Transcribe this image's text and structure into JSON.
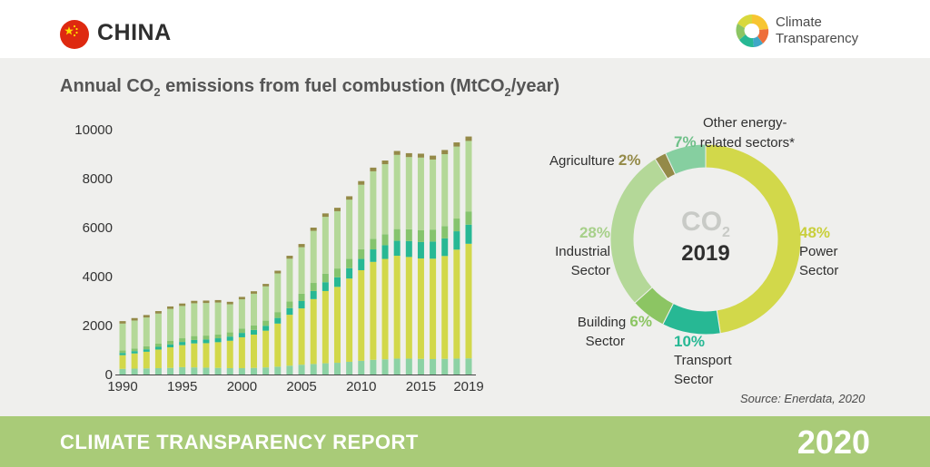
{
  "header": {
    "country": "CHINA",
    "logo_line1": "Climate",
    "logo_line2": "Transparency"
  },
  "footer": {
    "report": "CLIMATE TRANSPARENCY REPORT",
    "year": "2020"
  },
  "source": "Source: Enerdata, 2020",
  "chart_data": [
    {
      "type": "bar",
      "stacked": true,
      "title_parts": [
        "Annual CO",
        "2",
        " emissions from fuel combustion (MtCO",
        "2",
        "/year)"
      ],
      "title": "Annual CO2 emissions from fuel combustion (MtCO2/year)",
      "ylim": [
        0,
        10000
      ],
      "yticks": [
        0,
        2000,
        4000,
        6000,
        8000,
        10000
      ],
      "xticks": [
        1990,
        1995,
        2000,
        2005,
        2010,
        2015,
        2019
      ],
      "categories": [
        1990,
        1991,
        1992,
        1993,
        1994,
        1995,
        1996,
        1997,
        1998,
        1999,
        2000,
        2001,
        2002,
        2003,
        2004,
        2005,
        2006,
        2007,
        2008,
        2009,
        2010,
        2011,
        2012,
        2013,
        2014,
        2015,
        2016,
        2017,
        2018,
        2019
      ],
      "series": [
        {
          "key": "building",
          "color": "#8cd2a4",
          "values": [
            230,
            240,
            250,
            260,
            270,
            300,
            290,
            280,
            270,
            260,
            260,
            270,
            290,
            320,
            360,
            400,
            430,
            460,
            480,
            520,
            560,
            600,
            620,
            650,
            650,
            640,
            630,
            640,
            650,
            660
          ]
        },
        {
          "key": "power",
          "color": "#d2d84a",
          "values": [
            560,
            620,
            680,
            760,
            840,
            900,
            980,
            1000,
            1050,
            1120,
            1260,
            1360,
            1500,
            1760,
            2080,
            2300,
            2650,
            2950,
            3100,
            3400,
            3700,
            4000,
            4100,
            4200,
            4150,
            4100,
            4100,
            4200,
            4450,
            4680
          ]
        },
        {
          "key": "transport",
          "color": "#27b894",
          "values": [
            90,
            95,
            100,
            110,
            120,
            130,
            140,
            150,
            160,
            170,
            180,
            190,
            200,
            230,
            270,
            300,
            330,
            360,
            390,
            420,
            460,
            510,
            560,
            610,
            650,
            670,
            700,
            720,
            750,
            780
          ]
        },
        {
          "key": "other",
          "color": "#86c46e",
          "values": [
            100,
            110,
            120,
            130,
            140,
            150,
            160,
            160,
            160,
            170,
            180,
            190,
            210,
            240,
            270,
            300,
            330,
            350,
            360,
            380,
            400,
            430,
            450,
            480,
            480,
            480,
            490,
            500,
            520,
            540
          ]
        },
        {
          "key": "industrial",
          "color": "#b4d898",
          "values": [
            1100,
            1140,
            1180,
            1230,
            1310,
            1320,
            1340,
            1330,
            1300,
            1150,
            1190,
            1290,
            1400,
            1580,
            1750,
            1900,
            2130,
            2320,
            2340,
            2420,
            2630,
            2760,
            2860,
            3030,
            2950,
            2970,
            2860,
            2940,
            2940,
            2880
          ]
        },
        {
          "key": "agriculture",
          "color": "#948a48",
          "values": [
            100,
            100,
            100,
            100,
            100,
            100,
            100,
            100,
            100,
            100,
            100,
            100,
            100,
            110,
            120,
            130,
            130,
            140,
            140,
            140,
            150,
            150,
            150,
            160,
            160,
            160,
            160,
            170,
            170,
            180
          ]
        }
      ]
    },
    {
      "type": "pie",
      "donut": true,
      "center_label": "CO",
      "center_label_sub": "2",
      "center_year": "2019",
      "slices": [
        {
          "key": "power",
          "value": 48,
          "pct_label": "48%",
          "name_lines": [
            "Power",
            "Sector"
          ],
          "color": "#d2d84a"
        },
        {
          "key": "transport",
          "value": 10,
          "pct_label": "10%",
          "name_lines": [
            "Transport",
            "Sector"
          ],
          "color": "#27b894"
        },
        {
          "key": "building",
          "value": 6,
          "pct_label": "6%",
          "name_lines": [
            "Building",
            "Sector"
          ],
          "color": "#8cc563"
        },
        {
          "key": "industrial",
          "value": 28,
          "pct_label": "28%",
          "name_lines": [
            "Industrial",
            "Sector"
          ],
          "color": "#b4d898"
        },
        {
          "key": "agriculture",
          "value": 2,
          "pct_label": "2%",
          "name_lines": [
            "Agriculture"
          ],
          "color": "#948a48"
        },
        {
          "key": "other",
          "value": 7,
          "pct_label": "7%",
          "name_lines": [
            "Other energy-",
            "related sectors*"
          ],
          "color": "#86cfa0"
        }
      ]
    }
  ]
}
